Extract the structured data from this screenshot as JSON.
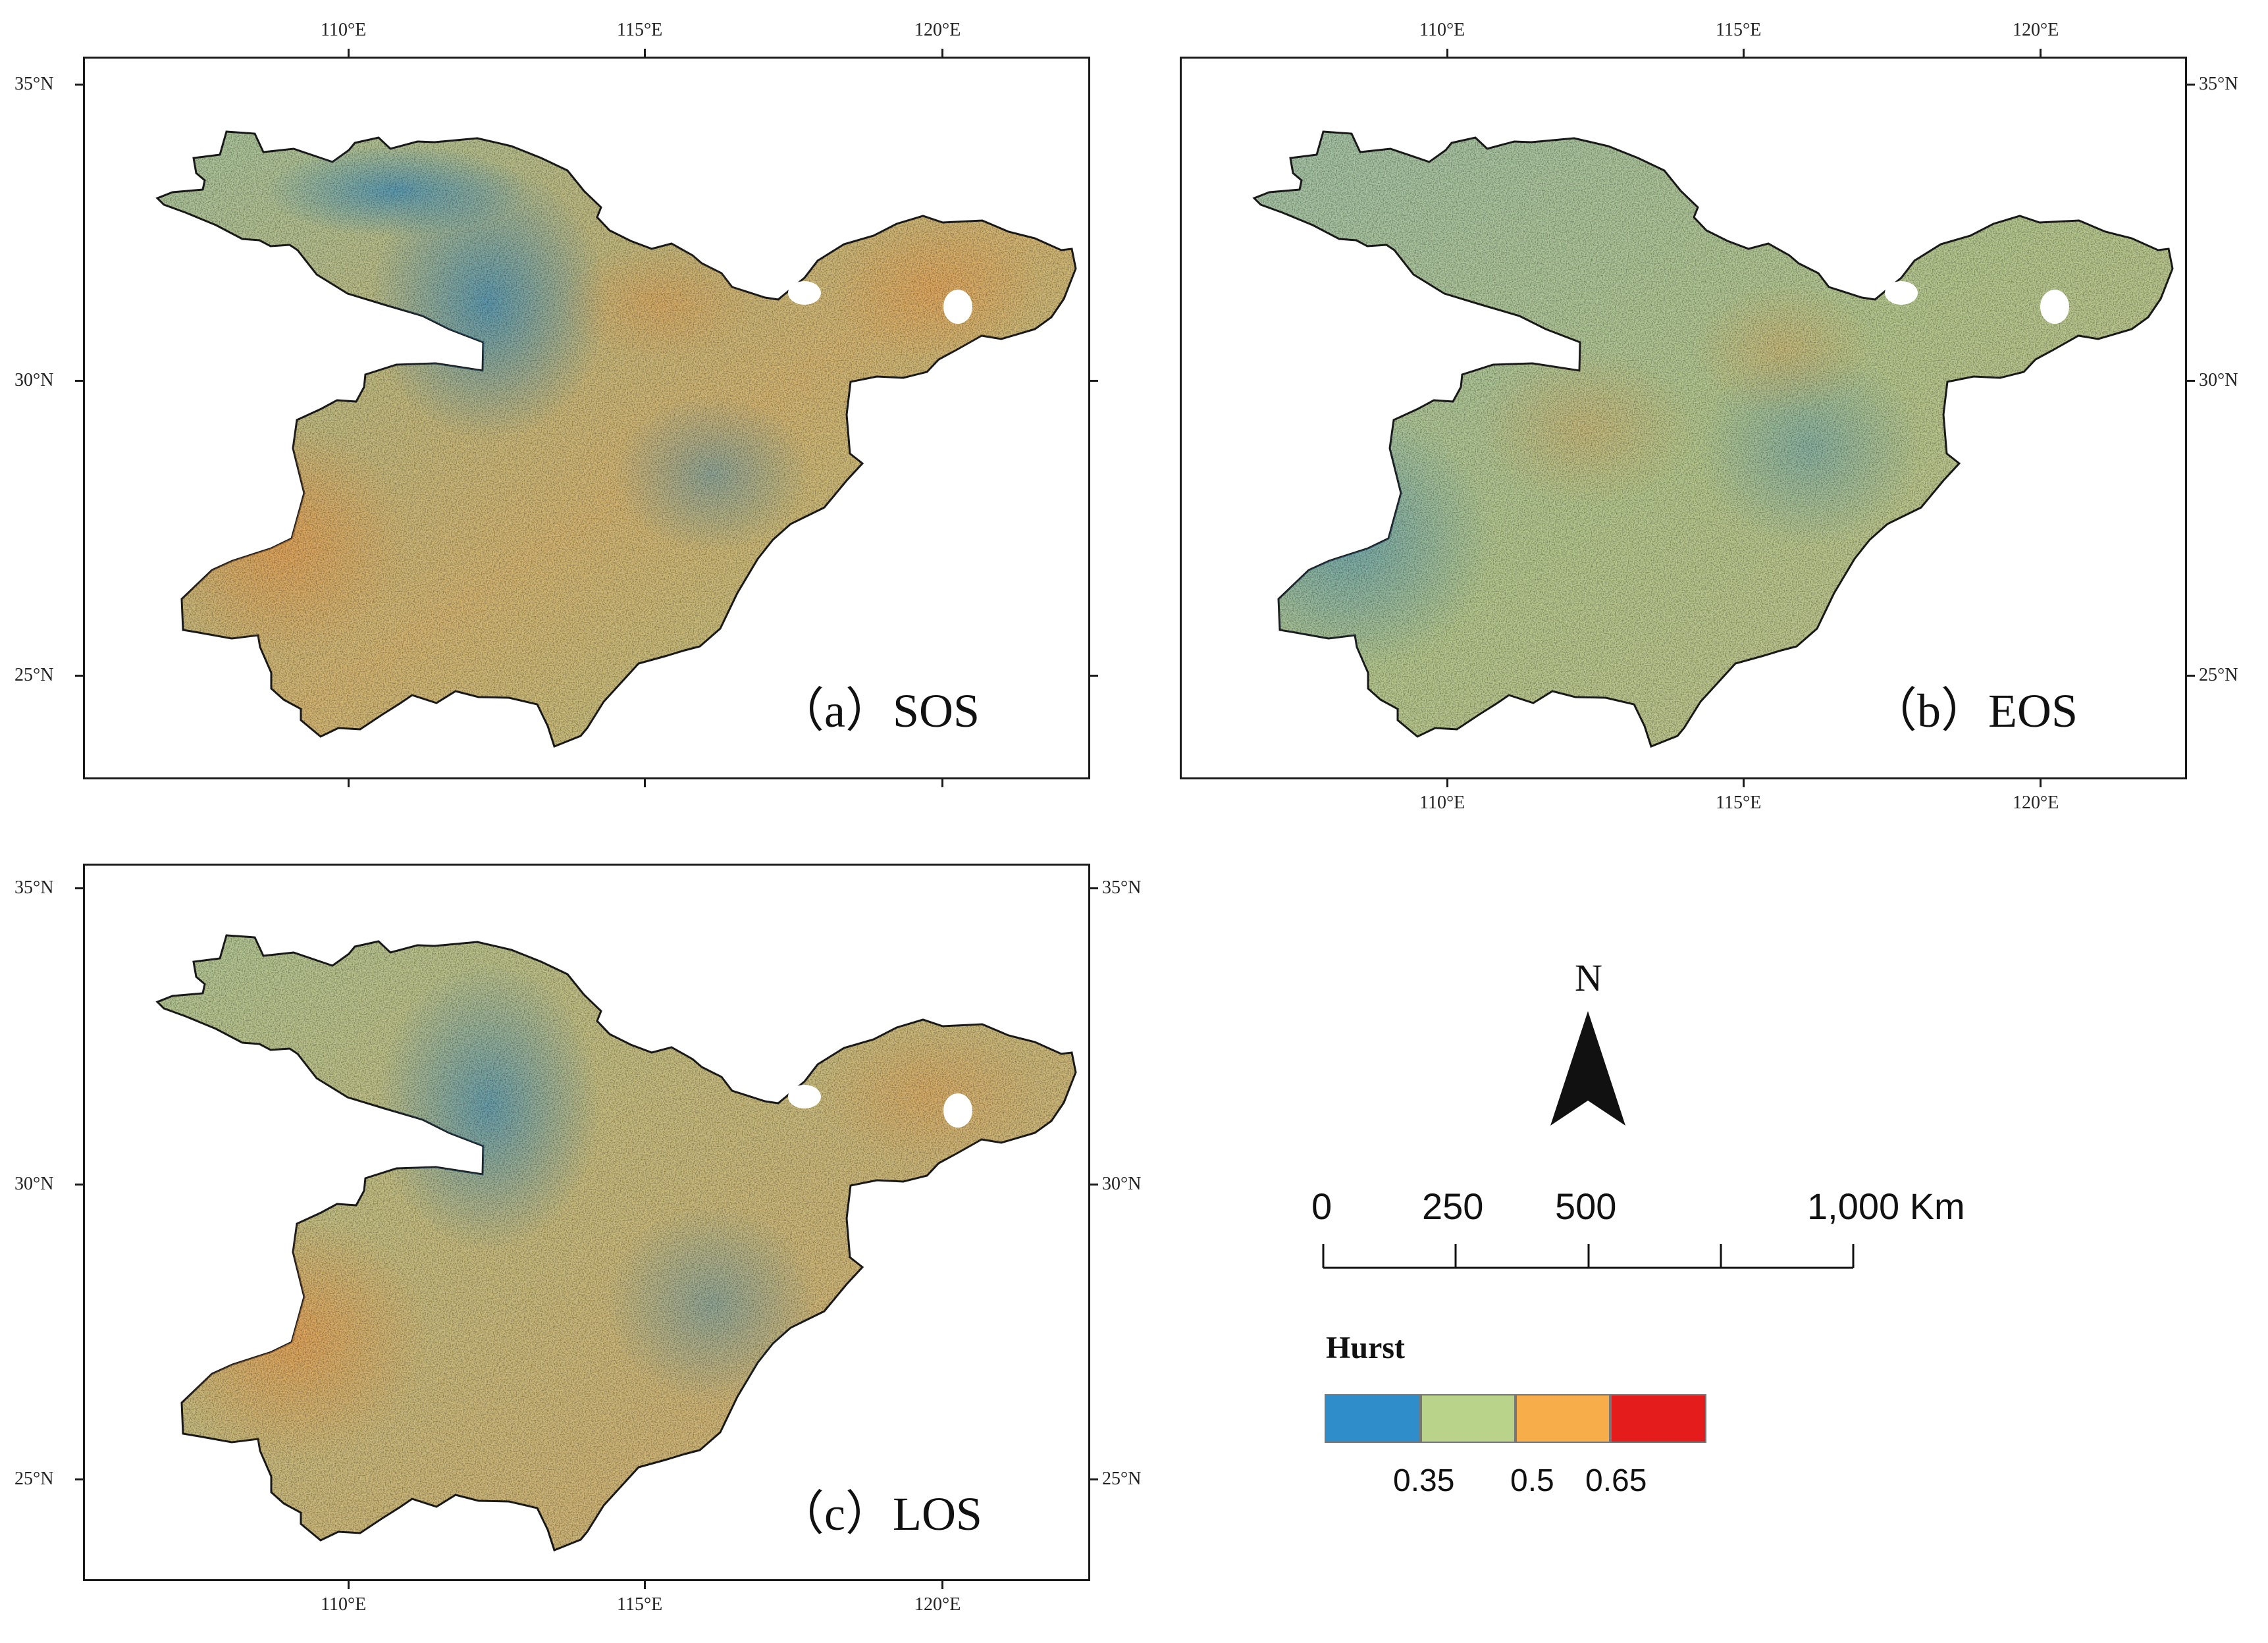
{
  "panels": [
    {
      "id": "a",
      "label": "（a）SOS",
      "tone": "sos"
    },
    {
      "id": "b",
      "label": "（b）EOS",
      "tone": "eos"
    },
    {
      "id": "c",
      "label": "（c）LOS",
      "tone": "los"
    }
  ],
  "axes": {
    "lon_labels": [
      "110°E",
      "115°E",
      "120°E"
    ],
    "lat_labels": [
      "35°N",
      "30°N",
      "25°N"
    ]
  },
  "north_arrow": {
    "letter": "N"
  },
  "scale_bar": {
    "labels": [
      "0",
      "250",
      "500",
      "1,000 Km"
    ]
  },
  "legend": {
    "title": "Hurst",
    "colors": [
      "#2f8ec9",
      "#b9d38b",
      "#f7ad49",
      "#e41c1c"
    ],
    "labels": [
      "0.35",
      "0.5",
      "0.65"
    ]
  }
}
